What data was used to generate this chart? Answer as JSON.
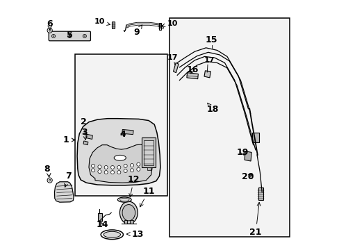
{
  "bg_color": "#ffffff",
  "line_color": "#000000",
  "gray_fill": "#e0e0e0",
  "font_size_num": 9,
  "font_size_small": 7
}
